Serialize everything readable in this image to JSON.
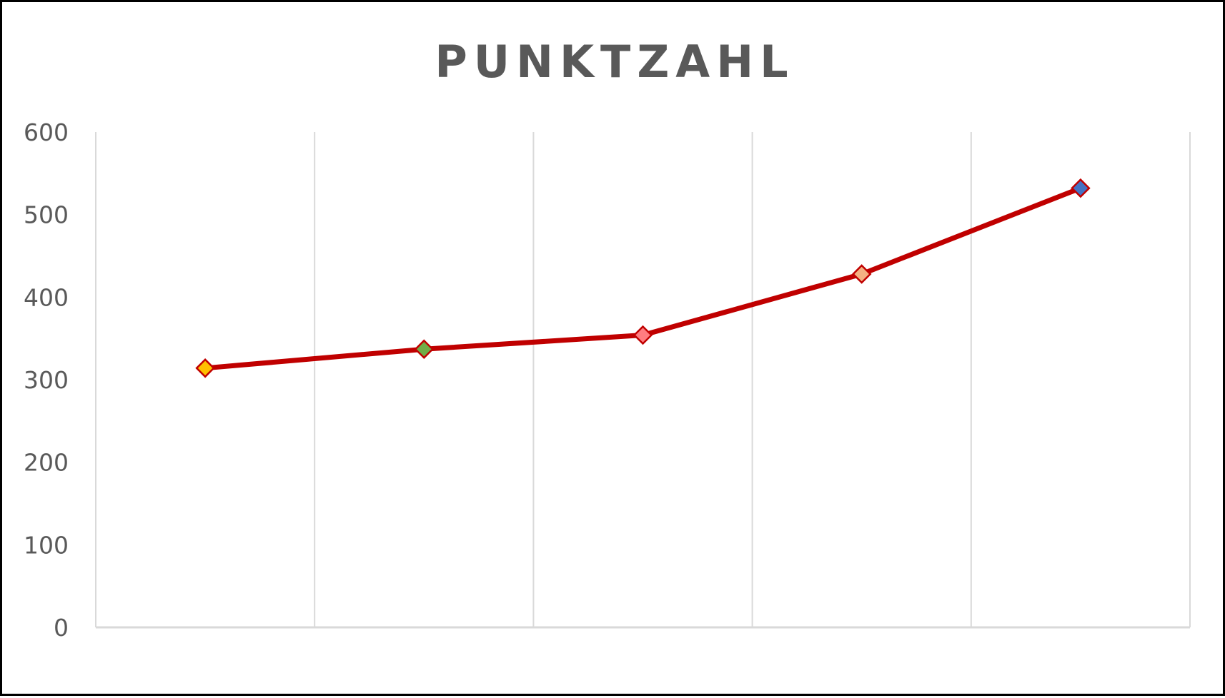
{
  "chart_data": {
    "type": "line",
    "title": "PUNKTZAHL",
    "xlabel": "",
    "ylabel": "",
    "categories": [
      "",
      "",
      "",
      "",
      ""
    ],
    "series": [
      {
        "values": [
          314,
          337,
          354,
          428,
          532
        ],
        "line_color": "#C00000",
        "marker": "diamond",
        "marker_colors": [
          "#FFC000",
          "#70AD47",
          "#FF7C80",
          "#F4B183",
          "#4472C4"
        ]
      }
    ],
    "ylim": [
      0,
      600
    ],
    "y_ticks": [
      "0",
      "100",
      "200",
      "300",
      "400",
      "500",
      "600"
    ],
    "grid": {
      "horizontal": false,
      "vertical": true
    },
    "legend": "none"
  },
  "colors": {
    "text": "#595959",
    "gridline": "#D9D9D9",
    "frame": "#000000"
  }
}
